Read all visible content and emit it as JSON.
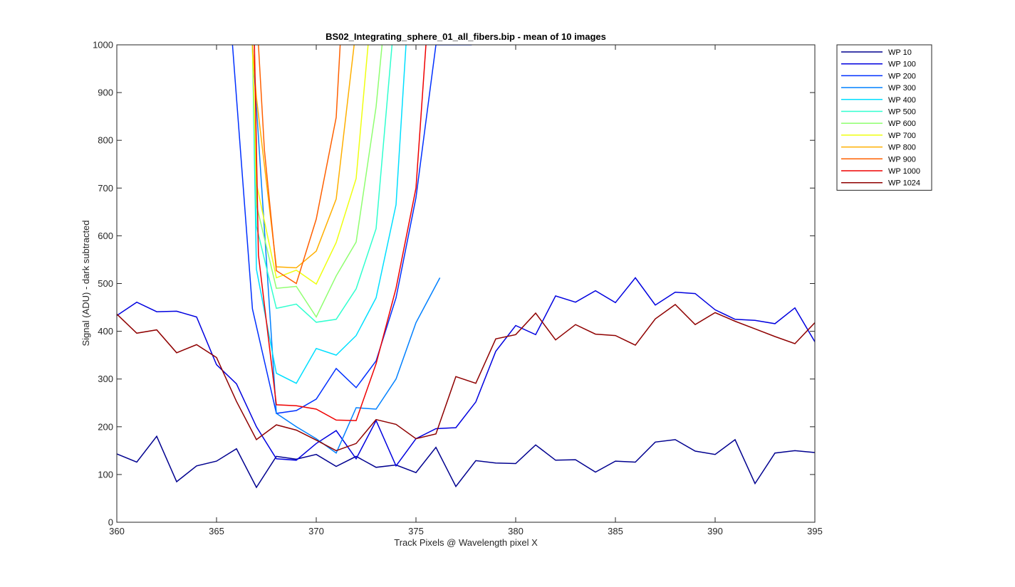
{
  "chart_data": {
    "type": "line",
    "title": "BS02_Integrating_sphere_01_all_fibers.bip - mean of 10 images",
    "xlabel": "Track Pixels @ Wavelength pixel X",
    "ylabel": "Signal (ADU) - dark subtracted",
    "xlim": [
      360,
      395
    ],
    "ylim": [
      0,
      1000
    ],
    "xticks": [
      360,
      365,
      370,
      375,
      380,
      385,
      390,
      395
    ],
    "yticks": [
      0,
      100,
      200,
      300,
      400,
      500,
      600,
      700,
      800,
      900,
      1000
    ],
    "xtick_labels": [
      "360",
      "365",
      "370",
      "375",
      "380",
      "385",
      "390",
      "395"
    ],
    "ytick_labels": [
      "0",
      "100",
      "200",
      "300",
      "400",
      "500",
      "600",
      "700",
      "800",
      "900",
      "1000"
    ],
    "grid": false,
    "legend_position": "outside-top-right",
    "series": [
      {
        "name": "WP 10",
        "color": "#00008f",
        "x": [
          360,
          361,
          362,
          363,
          364,
          365,
          366,
          367,
          368,
          369,
          370,
          371,
          372,
          373,
          374,
          375,
          376,
          377,
          378,
          379,
          380,
          381,
          382,
          383,
          384,
          385,
          386,
          387,
          388,
          389,
          390,
          391,
          392,
          393,
          394,
          395
        ],
        "y": [
          143,
          126,
          180,
          85,
          118,
          128,
          154,
          73,
          138,
          132,
          142,
          117,
          138,
          115,
          120,
          104,
          157,
          75,
          129,
          124,
          123,
          162,
          130,
          131,
          105,
          128,
          126,
          168,
          173,
          149,
          142,
          173,
          81,
          145,
          150,
          146
        ]
      },
      {
        "name": "WP 100",
        "color": "#0000df",
        "x": [
          360,
          361,
          362,
          363,
          364,
          365,
          366,
          367,
          368,
          369,
          370,
          371,
          372,
          373,
          374,
          375,
          376,
          377,
          378,
          379,
          380,
          381,
          382,
          383,
          384,
          385,
          386,
          387,
          388,
          389,
          390,
          391,
          392,
          393,
          394,
          395
        ],
        "y": [
          433,
          461,
          441,
          442,
          430,
          330,
          290,
          200,
          133,
          130,
          165,
          192,
          133,
          213,
          118,
          175,
          196,
          198,
          252,
          358,
          412,
          393,
          474,
          461,
          485,
          460,
          512,
          455,
          482,
          479,
          445,
          425,
          423,
          416,
          449,
          378
        ]
      },
      {
        "name": "WP 200",
        "color": "#0030ff",
        "x": [
          365.8,
          366.8,
          368,
          369,
          370,
          371,
          372,
          373,
          374,
          375,
          376,
          377.8
        ],
        "y": [
          1000,
          447,
          228,
          234,
          258,
          322,
          282,
          338,
          470,
          680,
          1000,
          1000
        ]
      },
      {
        "name": "WP 300",
        "color": "#0080ff",
        "x": [
          366.8,
          368,
          369,
          370,
          371,
          372,
          373,
          374,
          375,
          376.2
        ],
        "y": [
          1000,
          228,
          200,
          175,
          145,
          240,
          237,
          300,
          418,
          512
        ]
      },
      {
        "name": "WP 400",
        "color": "#00dfff",
        "x": [
          366.8,
          367,
          368,
          369,
          370,
          371,
          372,
          373,
          374,
          374.5
        ],
        "y": [
          1000,
          530,
          312,
          291,
          364,
          350,
          391,
          470,
          665,
          1000
        ]
      },
      {
        "name": "WP 500",
        "color": "#30ffcf",
        "x": [
          366.8,
          367,
          368,
          369,
          370,
          371,
          372,
          373,
          373.8
        ],
        "y": [
          1000,
          620,
          448,
          457,
          419,
          425,
          489,
          615,
          1000
        ]
      },
      {
        "name": "WP 600",
        "color": "#8fff70",
        "x": [
          366.8,
          367,
          368,
          369,
          370,
          371,
          372,
          373,
          373.3
        ],
        "y": [
          1000,
          665,
          490,
          494,
          430,
          516,
          587,
          870,
          1000
        ]
      },
      {
        "name": "WP 700",
        "color": "#efff10",
        "x": [
          366.8,
          367,
          368,
          369,
          370,
          371,
          372,
          372.6
        ],
        "y": [
          1000,
          710,
          512,
          528,
          499,
          586,
          720,
          1000
        ]
      },
      {
        "name": "WP 800",
        "color": "#ffaf00",
        "x": [
          366.8,
          367,
          368,
          369,
          370,
          371,
          371.9
        ],
        "y": [
          1000,
          890,
          535,
          533,
          568,
          677,
          1000
        ]
      },
      {
        "name": "WP 900",
        "color": "#ff6000",
        "x": [
          367.1,
          367.4,
          368,
          369,
          370,
          371,
          371.2
        ],
        "y": [
          1000,
          780,
          527,
          500,
          635,
          848,
          1000
        ]
      },
      {
        "name": "WP 1000",
        "color": "#ef0000",
        "x": [
          366.9,
          367.1,
          368,
          369,
          370,
          371,
          372,
          373,
          374,
          375,
          375.5
        ],
        "y": [
          1000,
          560,
          246,
          244,
          237,
          214,
          213,
          332,
          490,
          700,
          1000
        ]
      },
      {
        "name": "WP 1024",
        "color": "#8f0000",
        "x": [
          360,
          361,
          362,
          363,
          364,
          365,
          366,
          367,
          368,
          369,
          370,
          371,
          372,
          373,
          374,
          375,
          376,
          377,
          378,
          379,
          380,
          381,
          382,
          383,
          384,
          385,
          386,
          387,
          388,
          389,
          390,
          391,
          392,
          393,
          394,
          395
        ],
        "y": [
          436,
          396,
          403,
          355,
          372,
          345,
          253,
          173,
          204,
          193,
          172,
          150,
          165,
          215,
          205,
          175,
          185,
          305,
          291,
          384,
          393,
          438,
          382,
          414,
          394,
          391,
          371,
          426,
          456,
          414,
          439,
          421,
          405,
          389,
          374,
          418
        ]
      }
    ]
  }
}
